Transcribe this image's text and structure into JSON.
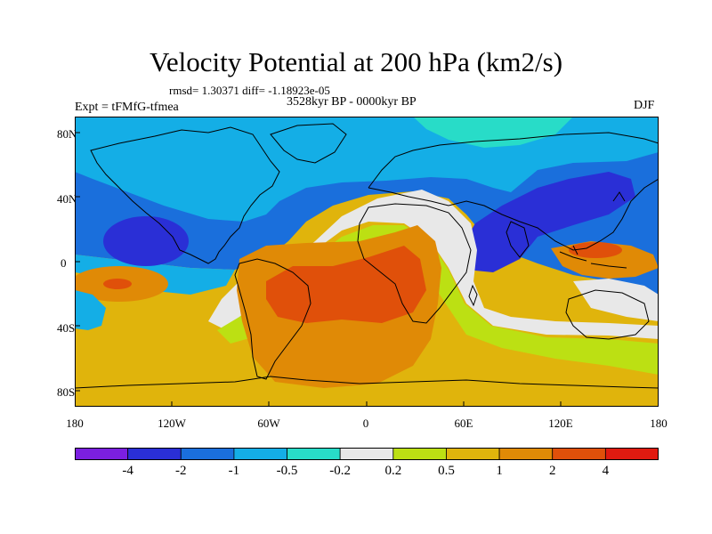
{
  "header": {
    "title": "Velocity Potential at 200 hPa (km2/s)",
    "stats": "rmsd= 1.30371 diff= -1.18923e-05",
    "period": "3528kyr BP - 0000kyr BP",
    "experiment": "Expt = tFMfG-tfmea",
    "season": "DJF"
  },
  "axes": {
    "y_ticks": [
      "80N",
      "40N",
      "0",
      "40S",
      "80S"
    ],
    "x_ticks": [
      "180",
      "120W",
      "60W",
      "0",
      "60E",
      "120E",
      "180"
    ]
  },
  "colorbar": {
    "labels": [
      "-4",
      "-2",
      "-1",
      "-0.5",
      "-0.2",
      "0.2",
      "0.5",
      "1",
      "2",
      "4"
    ],
    "colors": [
      "#7b1fe0",
      "#2a2fd6",
      "#1a6fdc",
      "#14aee6",
      "#28dcc8",
      "#e8e8e8",
      "#bce013",
      "#e0b40c",
      "#e08a06",
      "#e0500a",
      "#e01a10"
    ]
  },
  "map_colors": {
    "ocean_base": "#e0b40c",
    "land_outline": "#000000"
  }
}
